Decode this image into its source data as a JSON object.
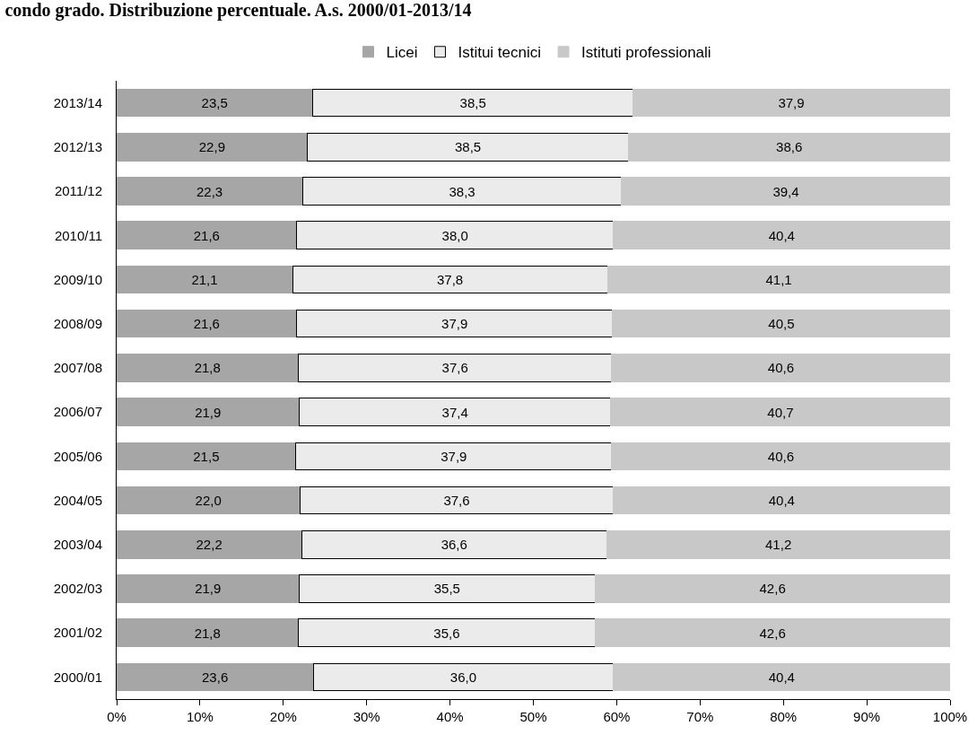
{
  "chart_data": {
    "type": "bar",
    "orientation": "horizontal",
    "stacked": true,
    "title": "condo grado. Distribuzione percentuale. A.s. 2000/01-2013/14",
    "categories": [
      "2013/14",
      "2012/13",
      "2011/12",
      "2010/11",
      "2009/10",
      "2008/09",
      "2007/08",
      "2006/07",
      "2005/06",
      "2004/05",
      "2003/04",
      "2002/03",
      "2001/02",
      "2000/01"
    ],
    "series": [
      {
        "name": "Licei",
        "color": "#a6a6a6",
        "values": [
          23.5,
          22.9,
          22.3,
          21.6,
          21.1,
          21.6,
          21.8,
          21.9,
          21.5,
          22.0,
          22.2,
          21.9,
          21.8,
          23.6
        ],
        "value_labels": [
          "23,5",
          "22,9",
          "22,3",
          "21,6",
          "21,1",
          "21,6",
          "21,8",
          "21,9",
          "21,5",
          "22,0",
          "22,2",
          "21,9",
          "21,8",
          "23,6"
        ]
      },
      {
        "name": "Istitui tecnici",
        "color": "#ebebeb",
        "values": [
          38.5,
          38.5,
          38.3,
          38.0,
          37.8,
          37.9,
          37.6,
          37.4,
          37.9,
          37.6,
          36.6,
          35.5,
          35.6,
          36.0
        ],
        "value_labels": [
          "38,5",
          "38,5",
          "38,3",
          "38,0",
          "37,8",
          "37,9",
          "37,6",
          "37,4",
          "37,9",
          "37,6",
          "36,6",
          "35,5",
          "35,6",
          "36,0"
        ]
      },
      {
        "name": "Istituti professionali",
        "color": "#c8c8c8",
        "values": [
          37.9,
          38.6,
          39.4,
          40.4,
          41.1,
          40.5,
          40.6,
          40.7,
          40.6,
          40.4,
          41.2,
          42.6,
          42.6,
          40.4
        ],
        "value_labels": [
          "37,9",
          "38,6",
          "39,4",
          "40,4",
          "41,1",
          "40,5",
          "40,6",
          "40,7",
          "40,6",
          "40,4",
          "41,2",
          "42,6",
          "42,6",
          "40,4"
        ]
      }
    ],
    "xlim": [
      0,
      100
    ],
    "xticks": [
      {
        "value": 0,
        "label": "0%"
      },
      {
        "value": 10,
        "label": "10%"
      },
      {
        "value": 20,
        "label": "20%"
      },
      {
        "value": 30,
        "label": "30%"
      },
      {
        "value": 40,
        "label": "40%"
      },
      {
        "value": 50,
        "label": "50%"
      },
      {
        "value": 60,
        "label": "60%"
      },
      {
        "value": 70,
        "label": "70%"
      },
      {
        "value": 80,
        "label": "80%"
      },
      {
        "value": 90,
        "label": "90%"
      },
      {
        "value": 100,
        "label": "100%"
      }
    ],
    "legend": "top"
  }
}
